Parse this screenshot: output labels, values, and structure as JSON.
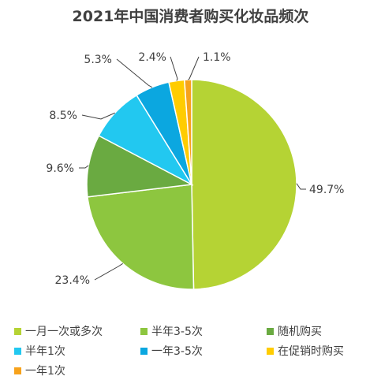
{
  "chart_data": {
    "type": "pie",
    "title": "2021年中国消费者购买化妆品频次",
    "categories": [
      "一月一次或多次",
      "半年3-5次",
      "随机购买",
      "半年1次",
      "一年3-5次",
      "在促销时购买",
      "一年1次"
    ],
    "values": [
      49.7,
      23.4,
      9.6,
      8.5,
      5.3,
      2.4,
      1.1
    ],
    "labels": [
      "49.7%",
      "23.4%",
      "9.6%",
      "8.5%",
      "5.3%",
      "2.4%",
      "1.1%"
    ],
    "colors": [
      "#b5d334",
      "#8dc63f",
      "#6aaa41",
      "#22c8f0",
      "#0ba7e0",
      "#ffcc00",
      "#f7a21b"
    ],
    "legend_position": "bottom"
  }
}
